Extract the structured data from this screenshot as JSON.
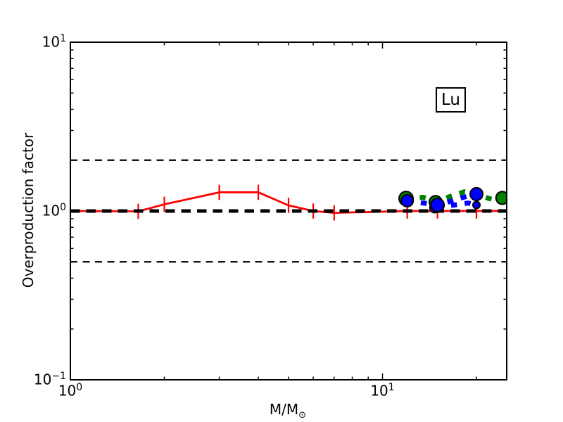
{
  "labels": {
    "ylabel": "Overproduction factor",
    "xlabel_main": "M/M",
    "xlabel_sub": "⊙",
    "legend": "Lu"
  },
  "colors": {
    "red_line": "#ff0000",
    "green_line": "#008000",
    "blue_line": "#0000ff",
    "reference": "#000000",
    "background": "#ffffff"
  },
  "chart_data": {
    "type": "line",
    "title": "",
    "legend_label": "Lu",
    "xlabel": "M/M_sun",
    "ylabel": "Overproduction factor",
    "xscale": "log",
    "yscale": "log",
    "xlim": [
      1,
      25
    ],
    "ylim": [
      0.1,
      10
    ],
    "grid": false,
    "x_major_ticks": [
      1,
      10
    ],
    "x_minor_ticks": [
      2,
      3,
      4,
      5,
      6,
      7,
      8,
      9,
      20
    ],
    "y_major_ticks": [
      0.1,
      1,
      10
    ],
    "y_minor_ticks": [
      0.2,
      0.3,
      0.4,
      0.5,
      0.6,
      0.7,
      0.8,
      0.9,
      2,
      3,
      4,
      5,
      6,
      7,
      8,
      9
    ],
    "x_tick_labels": [
      {
        "value": 1,
        "base": "10",
        "exp": "0"
      },
      {
        "value": 10,
        "base": "10",
        "exp": "1"
      }
    ],
    "y_tick_labels": [
      {
        "value": 10,
        "base": "10",
        "exp": "1"
      },
      {
        "value": 1,
        "base": "10",
        "exp": "0"
      },
      {
        "value": 0.1,
        "base": "10",
        "exp": "−1"
      }
    ],
    "reference_lines": [
      {
        "y": 2.0,
        "style": "dashed",
        "emphasis": false
      },
      {
        "y": 1.0,
        "style": "dashed",
        "emphasis": true
      },
      {
        "y": 0.5,
        "style": "dashed",
        "emphasis": false
      }
    ],
    "series": [
      {
        "name": "red-solid-with-errorbars",
        "color": "#ff0000",
        "linestyle": "solid",
        "linewidth": 2.8,
        "points": [
          [
            1,
            1.0
          ],
          [
            1.65,
            0.995
          ],
          [
            2,
            1.095
          ],
          [
            3,
            1.29
          ],
          [
            4,
            1.29
          ],
          [
            5,
            1.08
          ],
          [
            6,
            1.0
          ],
          [
            7,
            0.975
          ],
          [
            12,
            1.0
          ],
          [
            15,
            1.0
          ],
          [
            20,
            1.0
          ],
          [
            25,
            1.0
          ]
        ],
        "errorbars": {
          "x": [
            1.65,
            2,
            3,
            4,
            5,
            6,
            7,
            12,
            15,
            20
          ],
          "factor": 1.11
        },
        "markers": []
      },
      {
        "name": "green-thick-dashed-circles",
        "color": "#008000",
        "linestyle": "dashed",
        "linewidth": 7,
        "points": [
          [
            11.9,
            1.185
          ],
          [
            13.5,
            1.205
          ],
          [
            15,
            1.15
          ],
          [
            18.3,
            1.3
          ],
          [
            20,
            1.25
          ],
          [
            23,
            1.155
          ],
          [
            24.2,
            1.195
          ]
        ],
        "markers": [
          [
            11.9,
            1.185,
            10
          ],
          [
            14.8,
            1.13,
            9
          ],
          [
            24.2,
            1.195,
            9
          ]
        ]
      },
      {
        "name": "blue-thick-dashed-circles",
        "color": "#0000ff",
        "linestyle": "dashed",
        "linewidth": 7,
        "points": [
          [
            12,
            1.15
          ],
          [
            13.5,
            1.115
          ],
          [
            15,
            1.08
          ],
          [
            18,
            1.2
          ],
          [
            20,
            1.26
          ]
        ],
        "points2": [
          [
            15,
            1.05
          ],
          [
            18.8,
            1.115
          ],
          [
            20,
            1.085
          ]
        ],
        "markers": [
          [
            12,
            1.15,
            8.5
          ],
          [
            14.7,
            1.045,
            7
          ],
          [
            15,
            1.085,
            9.5
          ],
          [
            20,
            1.26,
            9
          ],
          [
            20,
            1.085,
            5
          ]
        ]
      }
    ]
  }
}
